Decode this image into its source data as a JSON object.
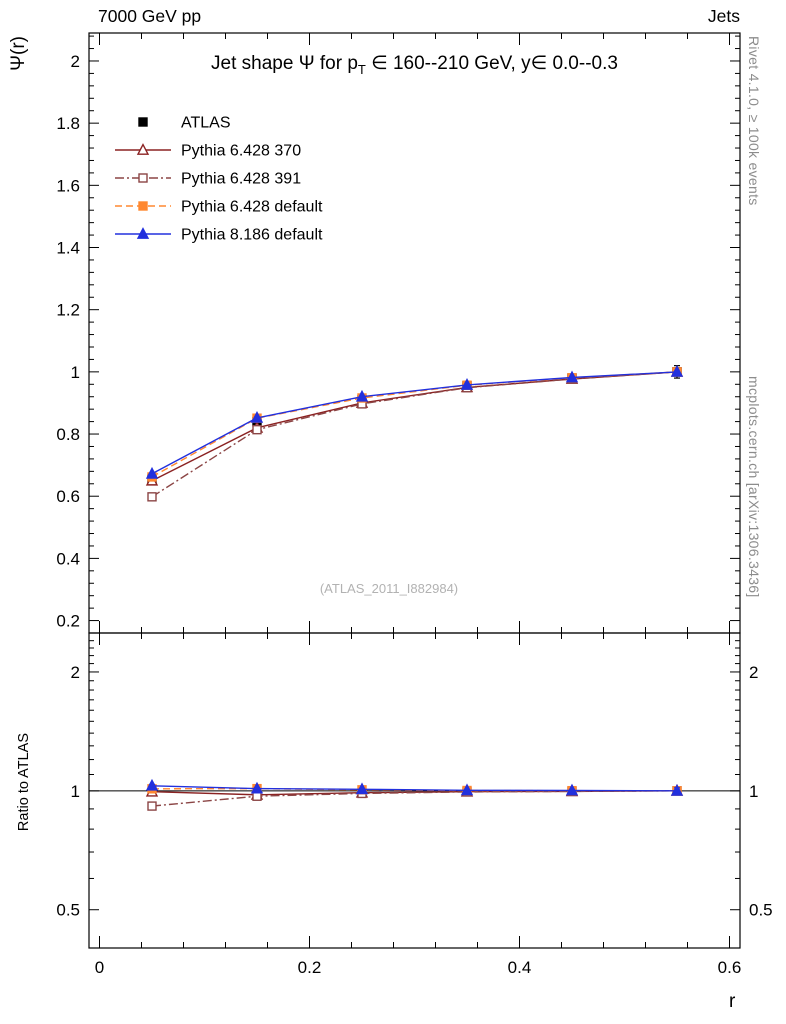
{
  "header": {
    "left": "7000 GeV pp",
    "right": "Jets"
  },
  "plot": {
    "title_main": "Jet shape Ψ for p",
    "title_sub": "T",
    "title_tail": " ∈ 160--210 GeV, y∈ 0.0--0.3",
    "ylabel_top": "Ψ(r)",
    "ylabel_bottom": "Ratio to ATLAS",
    "xlabel": "r",
    "watermark": "(ATLAS_2011_I882984)",
    "side_text_top": "Rivet 4.1.0, ≥ 100k events",
    "side_text_bottom": "mcplots.cern.ch [arXiv:1306.3436]"
  },
  "chart_data": [
    {
      "type": "line",
      "panel": "main",
      "title": "Jet shape Ψ for p_T ∈ 160--210 GeV, y ∈ 0.0--0.3",
      "xlabel": "r",
      "ylabel": "Ψ(r)",
      "xlim": [
        -0.01,
        0.61
      ],
      "ylim": [
        0.16,
        2.09
      ],
      "yscale": "linear",
      "grid": false,
      "legend_pos": "top-left",
      "xticks": {
        "values": [
          0,
          0.2,
          0.4,
          0.6
        ],
        "labels": [
          "0",
          "0.2",
          "0.4",
          "0.6"
        ]
      },
      "yticks": {
        "values": [
          0.2,
          0.4,
          0.6,
          0.8,
          1.0,
          1.2,
          1.4,
          1.6,
          1.8,
          2.0
        ],
        "labels": [
          "0.2",
          "0.4",
          "0.6",
          "0.8",
          "1",
          "1.2",
          "1.4",
          "1.6",
          "1.8",
          "2"
        ]
      },
      "x": [
        0.05,
        0.15,
        0.25,
        0.35,
        0.45,
        0.55
      ],
      "series": [
        {
          "name": "ATLAS",
          "color": "#000000",
          "marker": "square",
          "fill": true,
          "linestyle": "none",
          "values": [
            0.655,
            0.84,
            0.91,
            0.955,
            0.98,
            1.0
          ],
          "yerr": [
            0.012,
            0.008,
            0.006,
            0.005,
            0.004,
            0.02
          ]
        },
        {
          "name": "Pythia 6.428 370",
          "color": "#8b2222",
          "marker": "triangle",
          "fill": false,
          "linestyle": "solid",
          "values": [
            0.65,
            0.82,
            0.9,
            0.95,
            0.977,
            1.0
          ]
        },
        {
          "name": "Pythia 6.428 391",
          "color": "#8b4545",
          "marker": "square",
          "fill": false,
          "linestyle": "dashdot",
          "values": [
            0.598,
            0.814,
            0.897,
            0.949,
            0.977,
            1.0
          ]
        },
        {
          "name": "Pythia 6.428 default",
          "color": "#ff8830",
          "marker": "square",
          "fill": true,
          "linestyle": "dash",
          "values": [
            0.662,
            0.851,
            0.916,
            0.957,
            0.981,
            1.0
          ]
        },
        {
          "name": "Pythia 8.186 default",
          "color": "#2230dd",
          "marker": "triangle",
          "fill": true,
          "linestyle": "solid",
          "values": [
            0.672,
            0.852,
            0.92,
            0.958,
            0.982,
            1.0
          ]
        }
      ]
    },
    {
      "type": "line",
      "panel": "ratio",
      "ylabel": "Ratio to ATLAS",
      "yscale": "log",
      "ylim": [
        0.4,
        2.51
      ],
      "reference_line": 1,
      "yticks": {
        "values": [
          0.5,
          1,
          2
        ],
        "labels": [
          "0.5",
          "1",
          "2"
        ]
      },
      "x": [
        0.05,
        0.15,
        0.25,
        0.35,
        0.45,
        0.55
      ],
      "series": [
        {
          "name": "Pythia 6.428 370",
          "color": "#8b2222",
          "marker": "triangle",
          "fill": false,
          "linestyle": "solid",
          "values": [
            0.995,
            0.977,
            0.989,
            0.995,
            0.997,
            1.0
          ],
          "yerr": [
            0.008,
            0.005,
            0.004,
            0.003,
            0.003,
            0.018
          ]
        },
        {
          "name": "Pythia 6.428 391",
          "color": "#8b4545",
          "marker": "square",
          "fill": false,
          "linestyle": "dashdot",
          "values": [
            0.915,
            0.969,
            0.985,
            0.994,
            0.997,
            1.0
          ],
          "yerr": [
            0.008,
            0.005,
            0.004,
            0.003,
            0.003,
            0.018
          ]
        },
        {
          "name": "Pythia 6.428 default",
          "color": "#ff8830",
          "marker": "square",
          "fill": true,
          "linestyle": "dash",
          "values": [
            1.012,
            1.013,
            1.006,
            1.002,
            1.001,
            1.0
          ],
          "yerr": [
            0.008,
            0.005,
            0.004,
            0.003,
            0.003,
            0.018
          ]
        },
        {
          "name": "Pythia 8.186 default",
          "color": "#2230dd",
          "marker": "triangle",
          "fill": true,
          "linestyle": "solid",
          "values": [
            1.03,
            1.013,
            1.009,
            1.003,
            1.002,
            1.0
          ],
          "yerr": [
            0.008,
            0.005,
            0.004,
            0.003,
            0.003,
            0.018
          ]
        }
      ]
    }
  ]
}
